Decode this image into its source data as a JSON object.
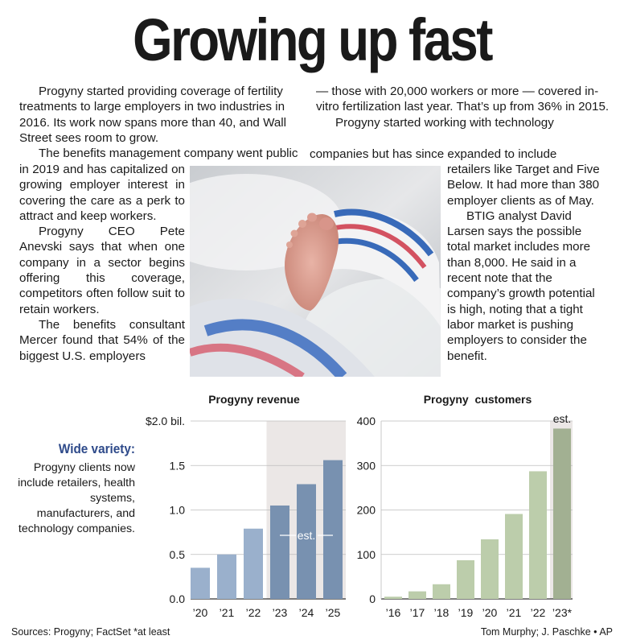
{
  "headline": "Growing up fast",
  "article": {
    "col1_lines": [
      "Progyny started providing coverage of fertility",
      "treatments to large employers in two industries in",
      "2016. Its work now spans more than 40, and Wall",
      "Street sees room to grow."
    ],
    "p2_first": "The benefits management company went public",
    "p2_rest": "in 2019 and has capitalized on growing employer interest in covering the care as a perk to attract and keep workers.",
    "p3": "Progyny CEO Pete Anevski says that when one company in a sector begins offering this coverage, competitors often follow suit to retain workers.",
    "p4": "The benefits consultant Mercer found that 54% of the biggest U.S. employers",
    "col2_top": "— those with 20,000 workers or more — covered in-vitro fertilization last year. That’s up from 36% in 2015.",
    "p5_first": "Progyny started working with technology",
    "p5_line2": "companies but has since expanded to include",
    "p5_rest": "retailers like Target and Five Below. It had more than 380 employer clients as of May.",
    "p6": "BTIG analyst David Larsen says the possible total market includes more than 8,000. He said in a recent note that the company’s growth potential is high, noting that a tight labor market is pushing employers to consider the benefit."
  },
  "sidebar": {
    "heading": "Wide variety:",
    "text": "Progyny clients now include retailers, health systems, manufacturers, and technology companies."
  },
  "chart_data": [
    {
      "type": "bar",
      "title": "Progyny revenue",
      "categories": [
        "’20",
        "’21",
        "’22",
        "’23",
        "’24",
        "’25"
      ],
      "values": [
        0.35,
        0.5,
        0.79,
        1.05,
        1.29,
        1.56
      ],
      "estimated_from": "’23",
      "estimate_label": "est.",
      "y_ticks": [
        "0.0",
        "0.5",
        "1.0",
        "1.5",
        "$2.0 bil."
      ],
      "y_tick_values": [
        0,
        0.5,
        1.0,
        1.5,
        2.0
      ],
      "ylim": [
        0,
        2.0
      ],
      "grid": true,
      "colors": {
        "actual": "#9ab0cc",
        "estimate": "#7891b0",
        "shade": "#ebe7e6"
      }
    },
    {
      "type": "bar",
      "title": "Progyny  customers",
      "categories": [
        "’16",
        "’17",
        "’18",
        "’19",
        "’20",
        "’21",
        "’22",
        "’23*"
      ],
      "values": [
        5,
        17,
        33,
        87,
        134,
        191,
        287,
        383
      ],
      "estimated_from": "’23*",
      "estimate_label": "est.",
      "y_ticks": [
        "0",
        "100",
        "200",
        "300",
        "400"
      ],
      "y_tick_values": [
        0,
        100,
        200,
        300,
        400
      ],
      "ylim": [
        0,
        400
      ],
      "grid": true,
      "colors": {
        "actual": "#bccdab",
        "estimate": "#a2b092",
        "shade": "#ebe7e6"
      }
    }
  ],
  "footer": {
    "sources": "Sources:  Progyny; FactSet   *at least",
    "credit": "Tom Murphy;  J. Paschke • AP"
  }
}
